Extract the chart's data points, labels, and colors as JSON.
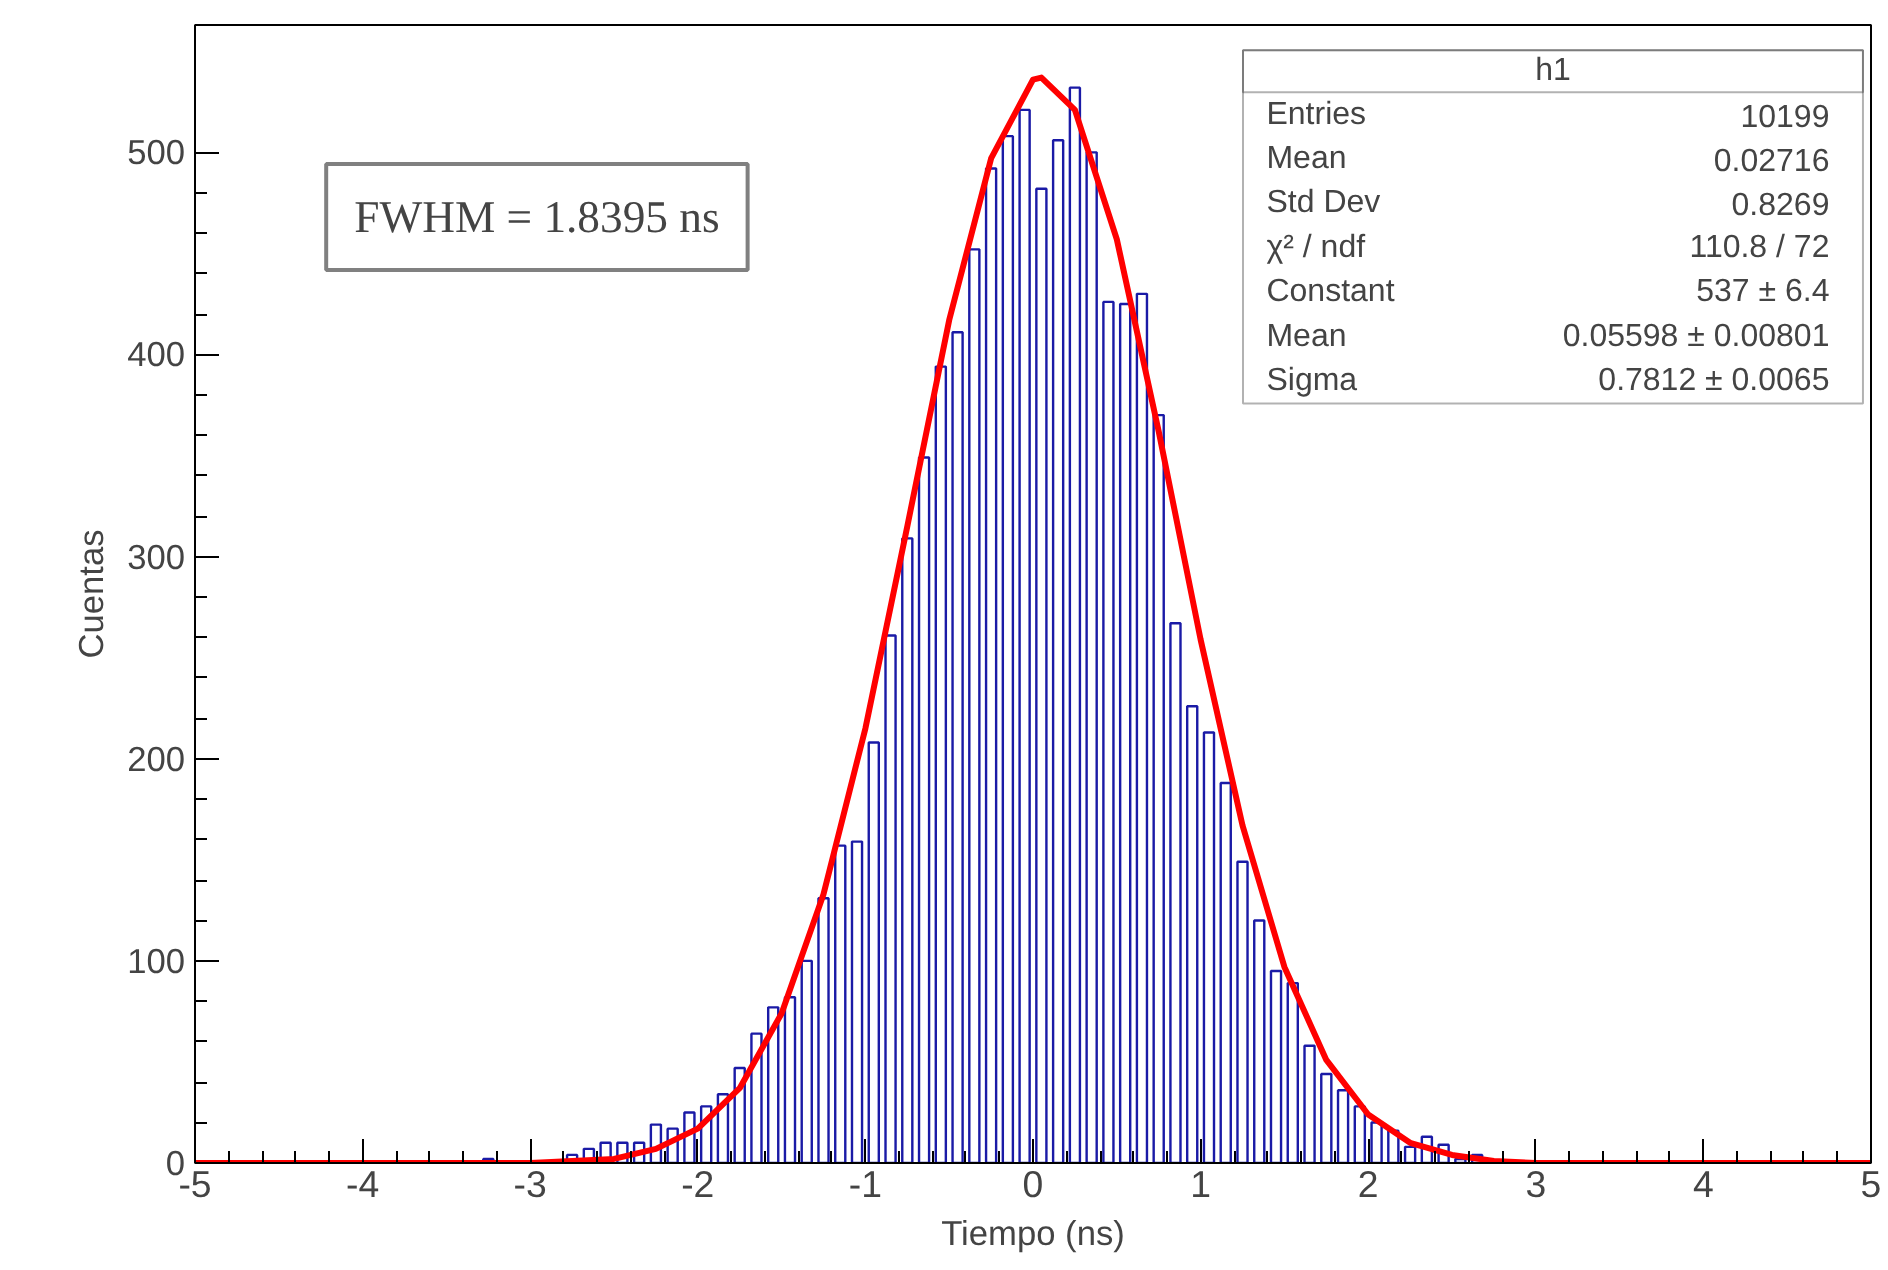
{
  "chart_data": {
    "type": "histogram",
    "xlabel": "Tiempo (ns)",
    "ylabel": "Cuentas",
    "xlim": [
      -5,
      5
    ],
    "ylim": [
      0,
      563
    ],
    "xticks": [
      -5,
      -4,
      -3,
      -2,
      -1,
      0,
      1,
      2,
      3,
      4,
      5
    ],
    "yticks": [
      0,
      100,
      200,
      300,
      400,
      500
    ],
    "grid": false,
    "series": [
      {
        "color": "#1a1aa6",
        "bins": [
          -5.0,
          -4.9,
          -4.8,
          -4.7,
          -4.6,
          -4.5,
          -4.4,
          -4.3,
          -4.2,
          -4.1,
          -4.0,
          -3.9,
          -3.8,
          -3.7,
          -3.6,
          -3.5,
          -3.4,
          -3.3,
          -3.2,
          -3.1,
          -3.0,
          -2.9,
          -2.8,
          -2.7,
          -2.6,
          -2.5,
          -2.4,
          -2.3,
          -2.2,
          -2.1,
          -2.0,
          -1.9,
          -1.8,
          -1.7,
          -1.6,
          -1.5,
          -1.4,
          -1.3,
          -1.2,
          -1.1,
          -1.0,
          -0.9,
          -0.8,
          -0.7,
          -0.6,
          -0.5,
          -0.4,
          -0.3,
          -0.2,
          -0.1,
          0.0,
          0.1,
          0.2,
          0.3,
          0.4,
          0.5,
          0.6,
          0.7,
          0.8,
          0.9,
          1.0,
          1.1,
          1.2,
          1.3,
          1.4,
          1.5,
          1.6,
          1.7,
          1.8,
          1.9,
          2.0,
          2.1,
          2.2,
          2.3,
          2.4,
          2.5,
          2.6,
          2.7,
          2.8,
          2.9,
          3.0,
          3.1,
          3.2,
          3.3,
          3.4,
          3.5,
          3.6,
          3.7,
          3.8,
          3.9,
          4.0,
          4.1,
          4.2,
          4.3,
          4.4,
          4.5,
          4.6,
          4.7,
          4.8,
          4.9,
          5.0
        ],
        "values": [
          0,
          0,
          0,
          0,
          0,
          0,
          0,
          0,
          0,
          0,
          0,
          0,
          0,
          0,
          0,
          0,
          0,
          2,
          0,
          0,
          0,
          0,
          4,
          7,
          10,
          10,
          10,
          19,
          17,
          25,
          28,
          34,
          47,
          64,
          77,
          82,
          100,
          131,
          157,
          159,
          208,
          261,
          309,
          349,
          394,
          411,
          452,
          492,
          508,
          521,
          482,
          506,
          532,
          500,
          426,
          425,
          430,
          370,
          267,
          226,
          213,
          188,
          149,
          120,
          95,
          89,
          58,
          44,
          36,
          28,
          20,
          16,
          8,
          13,
          9,
          2,
          4,
          0,
          0,
          0,
          0,
          0,
          0,
          0,
          0,
          0,
          0,
          0,
          0,
          0,
          0,
          0,
          0,
          0,
          0,
          0,
          0,
          0,
          0,
          0
        ]
      },
      {
        "type": "line",
        "color": "#ff0000",
        "x": [
          -5,
          -3,
          -2.5,
          -2.25,
          -2,
          -1.75,
          -1.5,
          -1.25,
          -1,
          -0.75,
          -0.5,
          -0.25,
          0,
          0.05,
          0.25,
          0.5,
          0.75,
          1,
          1.25,
          1.5,
          1.75,
          2,
          2.25,
          2.5,
          2.75,
          3,
          5
        ],
        "values": [
          0,
          0,
          2,
          7,
          17,
          37,
          74,
          133,
          215,
          315,
          417,
          497,
          536,
          537,
          521,
          457,
          362,
          259,
          167,
          97,
          51,
          24,
          10,
          4,
          1,
          0,
          0
        ]
      }
    ],
    "annotations": [
      "FWHM = 1.8395 ns",
      "h1",
      "Entries",
      "10199",
      "Mean",
      "0.02716",
      "Std Dev",
      "0.8269",
      "χ² / ndf",
      "110.8 / 72",
      "Constant",
      "537 ± 6.4",
      "Mean",
      "0.05598 ± 0.00801",
      "Sigma",
      "0.7812 ± 0.0065"
    ]
  }
}
